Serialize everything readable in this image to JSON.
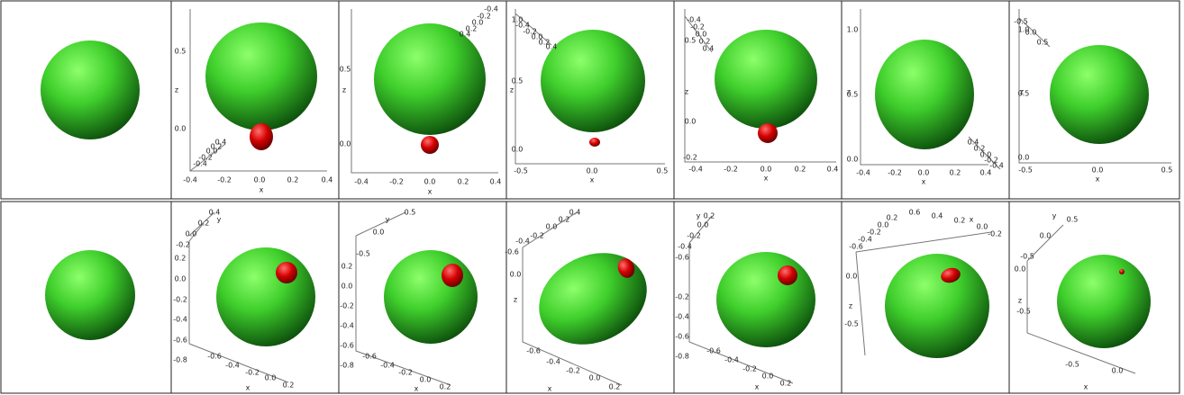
{
  "rows": [
    [
      {},
      {
        "labels": [
          "0.5",
          "0.0",
          "z",
          "-0.4",
          "-0.2",
          "0.0",
          "0.2",
          "0.4",
          "x",
          "0.4",
          "0.2",
          "0.0",
          "-0.2",
          "-0.4"
        ]
      },
      {
        "labels": [
          "0.5",
          "0.0",
          "z",
          "-0.4",
          "-0.2",
          "0.0",
          "0.2",
          "0.4",
          "x",
          "-0.4",
          "-0.2",
          "0.0",
          "0.2",
          "0.4"
        ]
      },
      {
        "labels": [
          "1.0",
          "0.5",
          "0.0",
          "z",
          "-0.5",
          "0.0",
          "0.5",
          "x",
          "-0.4",
          "-0.2",
          "0.0",
          "0.2",
          "0.4"
        ]
      },
      {
        "labels": [
          "0.5",
          "0.0",
          "-0.2",
          "z",
          "-0.4",
          "-0.2",
          "0.0",
          "0.2",
          "0.4",
          "x",
          "-0.4",
          "-0.2",
          "0.0",
          "0.2",
          "0.4"
        ]
      },
      {
        "labels": [
          "1.0",
          "0.5",
          "0.0",
          "z",
          "-0.4",
          "-0.2",
          "0.0",
          "0.2",
          "0.4",
          "x",
          "0.4",
          "0.2",
          "0.0",
          "-0.2",
          "-0.4"
        ]
      },
      {
        "labels": [
          "1.0",
          "0.5",
          "0.0",
          "z",
          "-0.5",
          "0.0",
          "0.5",
          "x",
          "-0.5",
          "0.0",
          "0.5"
        ]
      }
    ],
    [
      {},
      {
        "labels": [
          "0.4",
          "0.2",
          "y",
          "0.0",
          "-0.2",
          "0.2",
          "0.0",
          "-0.2",
          "-0.4",
          "-0.6",
          "-0.8",
          "-0.6",
          "-0.4",
          "-0.2",
          "0.0",
          "0.2",
          "x"
        ]
      },
      {
        "labels": [
          "y",
          "0.5",
          "0.0",
          "-0.5",
          "0.2",
          "0.0",
          "-0.2",
          "-0.4",
          "-0.6",
          "-0.8",
          "-0.6",
          "-0.4",
          "-0.2",
          "0.0",
          "0.2",
          "x"
        ]
      },
      {
        "labels": [
          "0.4",
          "0.2",
          "0.0",
          "-0.2",
          "-0.4",
          "-0.6",
          "0.0",
          "z",
          "-0.6",
          "-0.4",
          "-0.2",
          "0.0",
          "0.2",
          "x"
        ]
      },
      {
        "labels": [
          "y",
          "0.2",
          "0.0",
          "-0.2",
          "-0.4",
          "-0.6",
          "-0.2",
          "-0.4",
          "-0.6",
          "-0.8",
          "-0.6",
          "-0.4",
          "-0.2",
          "0.0",
          "0.2",
          "x"
        ]
      },
      {
        "labels": [
          "0.6",
          "0.4",
          "0.2",
          "0.0",
          "-0.2",
          "x",
          "0.2",
          "0.0",
          "-0.2",
          "-0.4",
          "-0.6",
          "0.0",
          "-0.5",
          "z"
        ]
      },
      {
        "labels": [
          "y",
          "0.5",
          "0.0",
          "-0.5",
          "0.0",
          "z",
          "-0.5",
          "-0.5",
          "0.0",
          "x"
        ]
      }
    ]
  ]
}
